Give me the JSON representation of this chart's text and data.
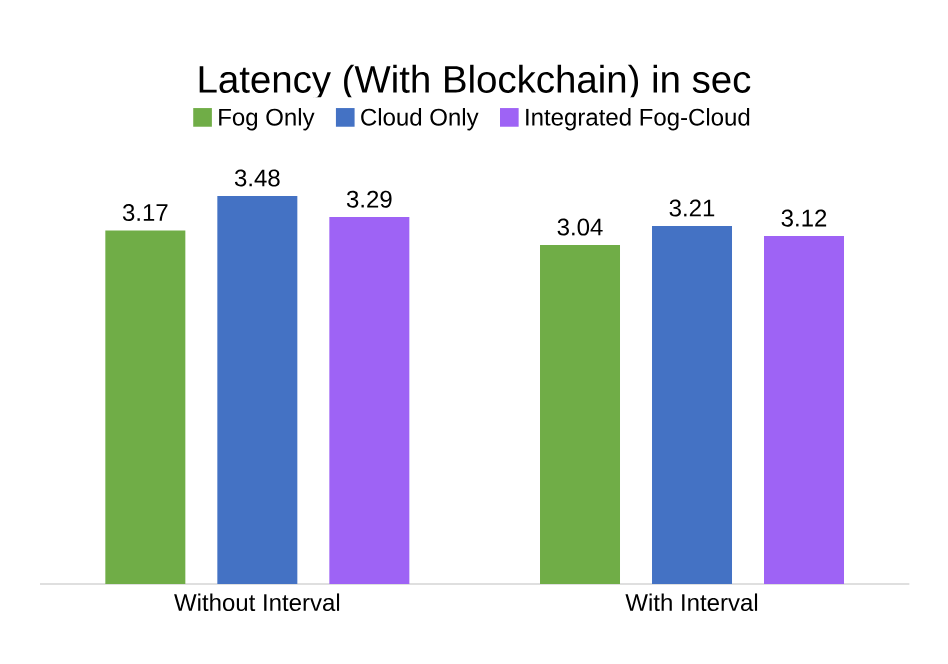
{
  "chart_data": {
    "type": "bar",
    "title": "Latency (With Blockchain) in sec",
    "categories": [
      "Without Interval",
      "With Interval"
    ],
    "series": [
      {
        "name": "Fog Only",
        "color": "#70ad47",
        "values": [
          3.17,
          3.04
        ]
      },
      {
        "name": "Cloud Only",
        "color": "#4472c4",
        "values": [
          3.48,
          3.21
        ]
      },
      {
        "name": "Integrated Fog-Cloud",
        "color": "#9e63f5",
        "values": [
          3.29,
          3.12
        ]
      }
    ],
    "tick_labels": "x",
    "data_labels": true,
    "legend": "top"
  }
}
